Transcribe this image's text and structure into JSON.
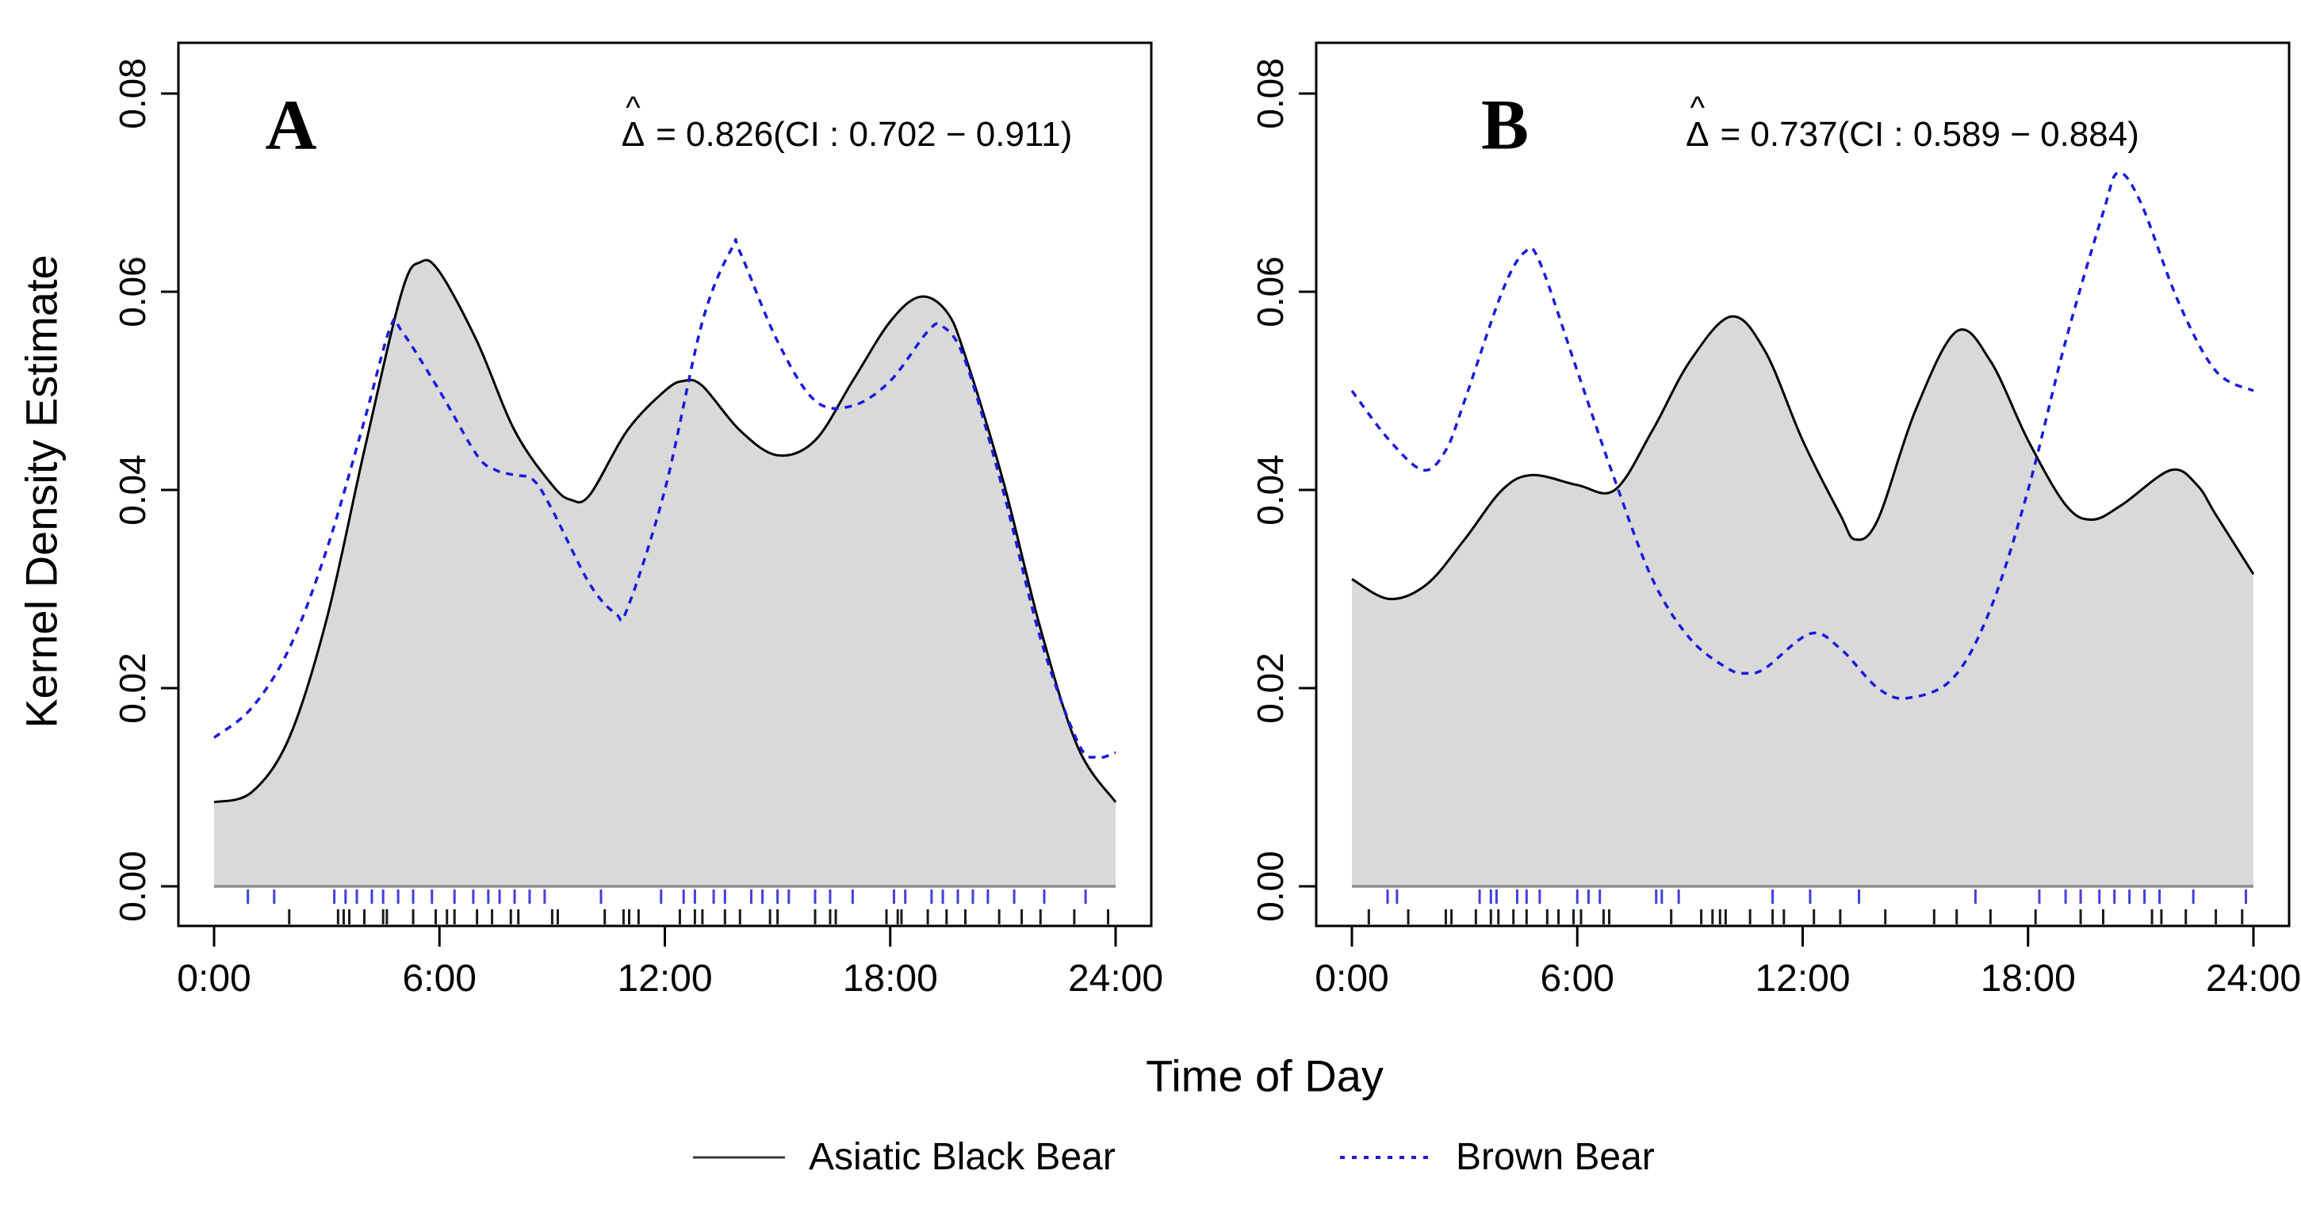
{
  "axes": {
    "y_label": "Kernel Density Estimate",
    "x_label": "Time of Day",
    "y_ticks": [
      "0.00",
      "0.02",
      "0.04",
      "0.06",
      "0.08"
    ],
    "y_tick_values": [
      0,
      0.02,
      0.04,
      0.06,
      0.08
    ],
    "x_ticks": [
      "0:00",
      "6:00",
      "12:00",
      "18:00",
      "24:00"
    ],
    "x_tick_values": [
      0,
      6,
      12,
      18,
      24
    ]
  },
  "legend": {
    "items": [
      {
        "label": "Asiatic Black Bear",
        "line_style": "solid",
        "color": "#000000"
      },
      {
        "label": "Brown Bear",
        "line_style": "dashed",
        "color": "#1a1ae0"
      }
    ]
  },
  "panels": [
    {
      "label": "A",
      "annotation": {
        "hat": "^",
        "delta": "Δ",
        "rest": "= 0.826(CI : 0.702 − 0.911)",
        "full": "Δ̂ = 0.826(CI : 0.702 − 0.911)"
      }
    },
    {
      "label": "B",
      "annotation": {
        "hat": "^",
        "delta": "Δ",
        "rest": "= 0.737(CI : 0.589 − 0.884)",
        "full": "Δ̂ = 0.737(CI : 0.589 − 0.884)"
      }
    }
  ],
  "colors": {
    "asiatic_black_bear_line": "#000000",
    "brown_bear_line": "#1a1ae0",
    "density_fill": "#d9d9d9",
    "baseline": "#8c8c8c",
    "rug_black": "#1a1a1a",
    "rug_blue": "#4040dd"
  },
  "chart_data": [
    {
      "panel": "A",
      "type": "line",
      "title": "Activity overlap, panel A",
      "annotation": "Δ̂ = 0.826(CI : 0.702 − 0.911)",
      "overlap_estimate": 0.826,
      "ci_low": 0.702,
      "ci_high": 0.911,
      "xlabel": "Time of Day",
      "ylabel": "Kernel Density Estimate",
      "xlim": [
        0,
        24
      ],
      "ylim": [
        0,
        0.08
      ],
      "x_tick_hours": [
        0,
        6,
        12,
        18,
        24
      ],
      "grid": false,
      "legend_position": "bottom",
      "series": [
        {
          "name": "Asiatic Black Bear",
          "style": "solid",
          "color": "#000000",
          "fill": "#d9d9d9",
          "x": [
            0,
            1,
            2,
            3,
            4,
            5,
            5.5,
            6,
            7,
            8,
            9,
            9.5,
            10,
            11,
            12,
            12.5,
            13,
            14,
            15,
            16,
            17,
            18,
            18.8,
            19.5,
            20,
            21,
            22,
            23,
            24
          ],
          "y": [
            0.0085,
            0.0095,
            0.015,
            0.027,
            0.044,
            0.06,
            0.063,
            0.062,
            0.055,
            0.046,
            0.0405,
            0.039,
            0.0395,
            0.046,
            0.05,
            0.051,
            0.0505,
            0.046,
            0.0435,
            0.045,
            0.051,
            0.057,
            0.0595,
            0.058,
            0.0535,
            0.041,
            0.026,
            0.014,
            0.0085
          ]
        },
        {
          "name": "Brown Bear",
          "style": "dashed",
          "color": "#1a1ae0",
          "fill": null,
          "x": [
            0,
            1,
            2,
            3,
            4,
            4.7,
            5,
            6,
            7,
            7.5,
            8,
            8.5,
            9,
            10,
            10.7,
            11,
            12,
            13,
            13.8,
            14,
            15,
            16,
            17,
            18,
            19,
            19.4,
            20,
            21,
            22,
            23,
            23.5,
            24
          ],
          "y": [
            0.015,
            0.018,
            0.024,
            0.034,
            0.047,
            0.0565,
            0.056,
            0.05,
            0.0435,
            0.042,
            0.0415,
            0.041,
            0.038,
            0.0305,
            0.0275,
            0.028,
            0.04,
            0.057,
            0.0645,
            0.064,
            0.055,
            0.049,
            0.0485,
            0.051,
            0.056,
            0.0565,
            0.053,
            0.04,
            0.025,
            0.0145,
            0.013,
            0.0135
          ]
        }
      ],
      "rug": {
        "brown_bear_hours": [
          0.9,
          1.6,
          3.2,
          3.5,
          3.8,
          4.2,
          4.5,
          4.9,
          5.3,
          5.8,
          6.4,
          6.9,
          7.3,
          7.6,
          8.0,
          8.4,
          8.8,
          10.3,
          11.9,
          12.5,
          12.8,
          13.3,
          13.6,
          14.3,
          14.6,
          15.0,
          15.3,
          16.0,
          16.4,
          17.0,
          18.1,
          18.4,
          19.1,
          19.4,
          19.8,
          20.2,
          20.6,
          21.3,
          22.1,
          23.2
        ],
        "asiatic_black_bear_hours": [
          2.0,
          3.3,
          3.45,
          3.6,
          4.0,
          4.5,
          4.6,
          5.3,
          5.9,
          6.2,
          6.4,
          7.0,
          7.4,
          7.9,
          8.1,
          9.0,
          9.15,
          10.4,
          10.9,
          11.05,
          11.3,
          12.4,
          12.8,
          13.0,
          13.6,
          14.0,
          14.8,
          15.0,
          16.0,
          16.4,
          16.55,
          17.9,
          18.2,
          18.3,
          19.0,
          19.5,
          20.0,
          20.9,
          21.5,
          22.0,
          22.9,
          23.8
        ]
      }
    },
    {
      "panel": "B",
      "type": "line",
      "title": "Activity overlap, panel B",
      "annotation": "Δ̂ = 0.737(CI : 0.589 − 0.884)",
      "overlap_estimate": 0.737,
      "ci_low": 0.589,
      "ci_high": 0.884,
      "xlabel": "Time of Day",
      "ylabel": "Kernel Density Estimate",
      "xlim": [
        0,
        24
      ],
      "ylim": [
        0,
        0.08
      ],
      "x_tick_hours": [
        0,
        6,
        12,
        18,
        24
      ],
      "grid": false,
      "legend_position": "bottom",
      "series": [
        {
          "name": "Asiatic Black Bear",
          "style": "solid",
          "color": "#000000",
          "fill": "#d9d9d9",
          "x": [
            0,
            1,
            2,
            3,
            4,
            4.8,
            6,
            7,
            8,
            9,
            10.1,
            11,
            12,
            13,
            13.4,
            14,
            15,
            16.1,
            17,
            18,
            19,
            19.7,
            20.5,
            21.8,
            22.5,
            23,
            24
          ],
          "y": [
            0.031,
            0.029,
            0.0305,
            0.035,
            0.04,
            0.0415,
            0.0405,
            0.04,
            0.046,
            0.053,
            0.0575,
            0.054,
            0.045,
            0.0375,
            0.035,
            0.037,
            0.048,
            0.056,
            0.053,
            0.045,
            0.0385,
            0.037,
            0.0385,
            0.042,
            0.0405,
            0.0375,
            0.0315
          ]
        },
        {
          "name": "Brown Bear",
          "style": "dashed",
          "color": "#1a1ae0",
          "fill": null,
          "x": [
            0,
            1,
            1.9,
            2.5,
            3,
            4,
            4.6,
            5,
            6,
            7,
            8,
            9,
            10,
            10.5,
            11,
            12.2,
            13,
            14,
            14.8,
            16,
            17,
            18,
            19,
            20,
            20.4,
            21,
            22,
            23,
            24
          ],
          "y": [
            0.05,
            0.045,
            0.042,
            0.044,
            0.049,
            0.06,
            0.064,
            0.063,
            0.052,
            0.041,
            0.031,
            0.025,
            0.022,
            0.0215,
            0.022,
            0.0255,
            0.024,
            0.02,
            0.019,
            0.021,
            0.028,
            0.04,
            0.055,
            0.068,
            0.072,
            0.069,
            0.059,
            0.052,
            0.05
          ]
        }
      ],
      "rug": {
        "brown_bear_hours": [
          0.95,
          1.2,
          3.4,
          3.7,
          3.85,
          4.4,
          4.65,
          5.0,
          6.0,
          6.3,
          6.6,
          8.1,
          8.25,
          8.7,
          11.2,
          12.2,
          13.5,
          16.6,
          18.3,
          19.0,
          19.4,
          19.9,
          20.3,
          20.7,
          21.1,
          21.5,
          22.4,
          23.8
        ],
        "asiatic_black_bear_hours": [
          0.45,
          1.5,
          2.5,
          2.65,
          3.3,
          3.7,
          3.9,
          4.3,
          4.65,
          5.2,
          5.5,
          5.9,
          6.1,
          6.7,
          6.85,
          8.5,
          9.3,
          9.6,
          9.8,
          9.95,
          10.6,
          11.2,
          11.5,
          12.3,
          13.0,
          14.2,
          15.5,
          16.1,
          17.0,
          18.2,
          19.4,
          20.0,
          21.3,
          21.55,
          22.2,
          23.0,
          23.7
        ]
      }
    }
  ]
}
